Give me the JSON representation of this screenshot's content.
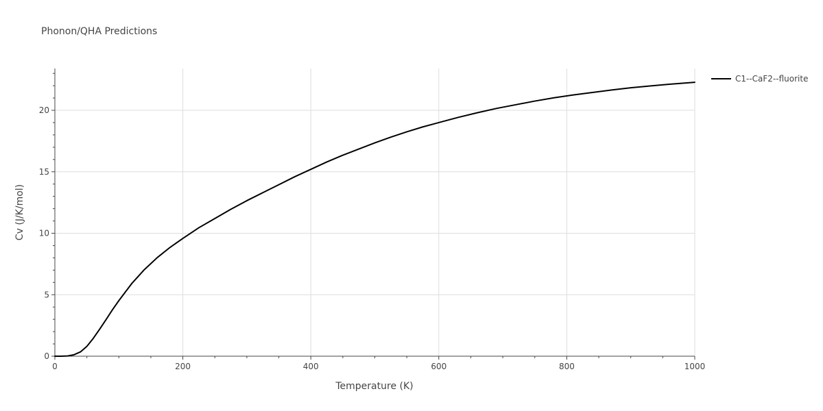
{
  "chart_data": {
    "type": "line",
    "title": "Phonon/QHA Predictions",
    "xlabel": "Temperature (K)",
    "ylabel": "Cv (J/K/mol)",
    "xlim": [
      0,
      1000
    ],
    "ylim": [
      0,
      23.4
    ],
    "xticks": [
      0,
      200,
      400,
      600,
      800,
      1000
    ],
    "yticks": [
      0,
      5,
      10,
      15,
      20
    ],
    "grid": true,
    "legend_position": "top-right",
    "series": [
      {
        "name": "C1--CaF2--fluorite",
        "color": "#000000",
        "x": [
          0,
          10,
          20,
          30,
          40,
          50,
          60,
          70,
          80,
          90,
          100,
          120,
          140,
          160,
          180,
          200,
          225,
          250,
          275,
          300,
          325,
          350,
          375,
          400,
          425,
          450,
          475,
          500,
          525,
          550,
          575,
          600,
          630,
          660,
          690,
          720,
          750,
          780,
          810,
          840,
          870,
          900,
          930,
          960,
          1000
        ],
        "y": [
          0,
          0,
          0.02,
          0.12,
          0.35,
          0.8,
          1.45,
          2.2,
          2.98,
          3.78,
          4.52,
          5.9,
          7.05,
          8.02,
          8.85,
          9.58,
          10.45,
          11.2,
          11.95,
          12.65,
          13.3,
          13.95,
          14.6,
          15.2,
          15.8,
          16.35,
          16.85,
          17.35,
          17.82,
          18.25,
          18.65,
          19.0,
          19.42,
          19.8,
          20.15,
          20.45,
          20.75,
          21.02,
          21.25,
          21.45,
          21.65,
          21.83,
          21.98,
          22.12,
          22.28
        ]
      }
    ]
  }
}
